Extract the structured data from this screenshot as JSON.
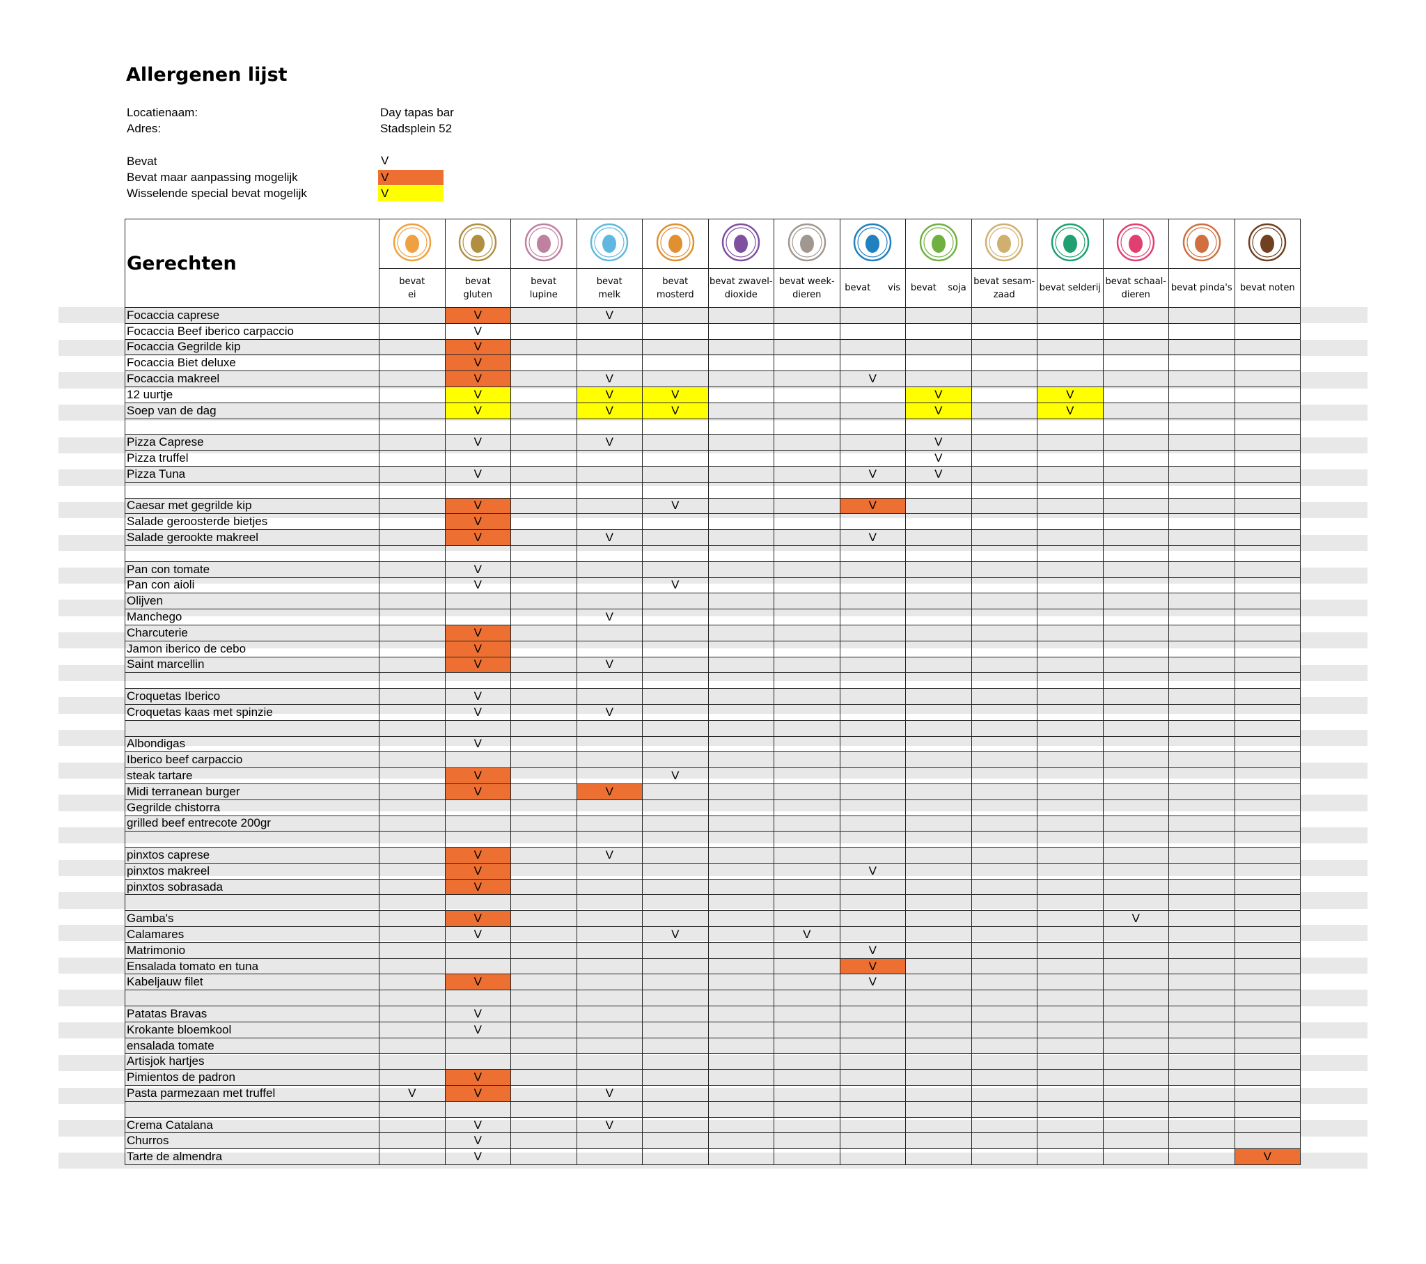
{
  "title": "Allergenen lijst",
  "info": [
    {
      "label": "Locatienaam:",
      "value": "Day tapas bar"
    },
    {
      "label": "Adres:",
      "value": "Stadsplein 52"
    }
  ],
  "legend": [
    {
      "label": "Bevat",
      "mark": "V",
      "fill": ""
    },
    {
      "label": "Bevat maar aanpassing mogelijk",
      "mark": "V",
      "fill": "#ed7032"
    },
    {
      "label": "Wisselende special bevat mogelijk",
      "mark": "V",
      "fill": "#ffff00"
    }
  ],
  "table": {
    "header": "Gerechten",
    "columns": [
      {
        "icon": "egg-icon",
        "color": "#f0a040",
        "label": [
          "bevat",
          "ei"
        ]
      },
      {
        "icon": "wheat-icon",
        "color": "#b09040",
        "label": [
          "bevat",
          "gluten"
        ]
      },
      {
        "icon": "lupine-icon",
        "color": "#c080a0",
        "label": [
          "bevat",
          "lupine"
        ]
      },
      {
        "icon": "milk-bottle-icon",
        "color": "#60b8e0",
        "label": [
          "bevat",
          "melk"
        ]
      },
      {
        "icon": "mustard-icon",
        "color": "#e09030",
        "label": [
          "bevat",
          "mosterd"
        ]
      },
      {
        "icon": "sulphite-icon",
        "color": "#8050a0",
        "label": [
          "bevat zwavel-",
          "dioxide"
        ]
      },
      {
        "icon": "snail-icon",
        "color": "#a09890",
        "label": [
          "bevat week-",
          "dieren"
        ]
      },
      {
        "icon": "fish-icon",
        "color": "#2080c0",
        "label": [
          "bevat      vis"
        ]
      },
      {
        "icon": "soy-icon",
        "color": "#70b040",
        "label": [
          "bevat    soja"
        ]
      },
      {
        "icon": "sesame-icon",
        "color": "#d0b070",
        "label": [
          "bevat sesam-",
          "zaad"
        ]
      },
      {
        "icon": "celery-icon",
        "color": "#20a070",
        "label": [
          "bevat selderij"
        ]
      },
      {
        "icon": "lobster-icon",
        "color": "#e04070",
        "label": [
          "bevat schaal-",
          "dieren"
        ]
      },
      {
        "icon": "peanut-icon",
        "color": "#d07040",
        "label": [
          "bevat pinda's"
        ]
      },
      {
        "icon": "nut-icon",
        "color": "#704020",
        "label": [
          "bevat noten"
        ]
      }
    ],
    "cell_colors": {
      "o": "#ed7032",
      "y": "#ffff00"
    },
    "rows": [
      {
        "name": "Focaccia caprese",
        "cells": [
          "",
          "Vo",
          "",
          "V",
          "",
          "",
          "",
          "",
          "",
          "",
          "",
          "",
          "",
          ""
        ]
      },
      {
        "name": "Focaccia Beef iberico carpaccio",
        "cells": [
          "",
          "V",
          "",
          "",
          "",
          "",
          "",
          "",
          "",
          "",
          "",
          "",
          "",
          ""
        ]
      },
      {
        "name": "Focaccia Gegrilde kip",
        "cells": [
          "",
          "Vo",
          "",
          "",
          "",
          "",
          "",
          "",
          "",
          "",
          "",
          "",
          "",
          ""
        ]
      },
      {
        "name": "Focaccia Biet deluxe",
        "cells": [
          "",
          "Vo",
          "",
          "",
          "",
          "",
          "",
          "",
          "",
          "",
          "",
          "",
          "",
          ""
        ]
      },
      {
        "name": "Focaccia makreel",
        "cells": [
          "",
          "Vo",
          "",
          "V",
          "",
          "",
          "",
          "V",
          "",
          "",
          "",
          "",
          "",
          ""
        ]
      },
      {
        "name": "12 uurtje",
        "cells": [
          "",
          "Vy",
          "",
          "Vy",
          "Vy",
          "",
          "",
          "",
          "Vy",
          "",
          "Vy",
          "",
          "",
          ""
        ]
      },
      {
        "name": "Soep van de dag",
        "cells": [
          "",
          "Vy",
          "",
          "Vy",
          "Vy",
          "",
          "",
          "",
          "Vy",
          "",
          "Vy",
          "",
          "",
          ""
        ]
      },
      {
        "name": "",
        "cells": [
          "",
          "",
          "",
          "",
          "",
          "",
          "",
          "",
          "",
          "",
          "",
          "",
          "",
          ""
        ]
      },
      {
        "name": "Pizza Caprese",
        "cells": [
          "",
          "V",
          "",
          "V",
          "",
          "",
          "",
          "",
          "V",
          "",
          "",
          "",
          "",
          ""
        ]
      },
      {
        "name": "Pizza truffel",
        "cells": [
          "",
          "",
          "",
          "",
          "",
          "",
          "",
          "",
          "V",
          "",
          "",
          "",
          "",
          ""
        ]
      },
      {
        "name": "Pizza Tuna",
        "cells": [
          "",
          "V",
          "",
          "",
          "",
          "",
          "",
          "V",
          "V",
          "",
          "",
          "",
          "",
          ""
        ]
      },
      {
        "name": "",
        "cells": [
          "",
          "",
          "",
          "",
          "",
          "",
          "",
          "",
          "",
          "",
          "",
          "",
          "",
          ""
        ]
      },
      {
        "name": "Caesar met gegrilde kip",
        "cells": [
          "",
          "Vo",
          "",
          "",
          "V",
          "",
          "",
          "Vo",
          "",
          "",
          "",
          "",
          "",
          ""
        ]
      },
      {
        "name": "Salade geroosterde bietjes",
        "cells": [
          "",
          "Vo",
          "",
          "",
          "",
          "",
          "",
          "",
          "",
          "",
          "",
          "",
          "",
          ""
        ]
      },
      {
        "name": "Salade gerookte makreel",
        "cells": [
          "",
          "Vo",
          "",
          "V",
          "",
          "",
          "",
          "V",
          "",
          "",
          "",
          "",
          "",
          ""
        ]
      },
      {
        "name": "",
        "cells": [
          "",
          "",
          "",
          "",
          "",
          "",
          "",
          "",
          "",
          "",
          "",
          "",
          "",
          ""
        ]
      },
      {
        "name": "Pan con tomate",
        "cells": [
          "",
          "V",
          "",
          "",
          "",
          "",
          "",
          "",
          "",
          "",
          "",
          "",
          "",
          ""
        ]
      },
      {
        "name": "Pan con aioli",
        "cells": [
          "",
          "V",
          "",
          "",
          "V",
          "",
          "",
          "",
          "",
          "",
          "",
          "",
          "",
          ""
        ]
      },
      {
        "name": "Olijven",
        "cells": [
          "",
          "",
          "",
          "",
          "",
          "",
          "",
          "",
          "",
          "",
          "",
          "",
          "",
          ""
        ]
      },
      {
        "name": "Manchego",
        "cells": [
          "",
          "",
          "",
          "V",
          "",
          "",
          "",
          "",
          "",
          "",
          "",
          "",
          "",
          ""
        ]
      },
      {
        "name": "Charcuterie",
        "cells": [
          "",
          "Vo",
          "",
          "",
          "",
          "",
          "",
          "",
          "",
          "",
          "",
          "",
          "",
          ""
        ]
      },
      {
        "name": "Jamon iberico de cebo",
        "cells": [
          "",
          "Vo",
          "",
          "",
          "",
          "",
          "",
          "",
          "",
          "",
          "",
          "",
          "",
          ""
        ]
      },
      {
        "name": "Saint marcellin",
        "cells": [
          "",
          "Vo",
          "",
          "V",
          "",
          "",
          "",
          "",
          "",
          "",
          "",
          "",
          "",
          ""
        ]
      },
      {
        "name": "",
        "cells": [
          "",
          "",
          "",
          "",
          "",
          "",
          "",
          "",
          "",
          "",
          "",
          "",
          "",
          ""
        ]
      },
      {
        "name": "Croquetas Iberico",
        "cells": [
          "",
          "V",
          "",
          "",
          "",
          "",
          "",
          "",
          "",
          "",
          "",
          "",
          "",
          ""
        ]
      },
      {
        "name": "Croquetas kaas met spinzie",
        "cells": [
          "",
          "V",
          "",
          "V",
          "",
          "",
          "",
          "",
          "",
          "",
          "",
          "",
          "",
          ""
        ]
      },
      {
        "name": "",
        "cells": [
          "",
          "",
          "",
          "",
          "",
          "",
          "",
          "",
          "",
          "",
          "",
          "",
          "",
          ""
        ]
      },
      {
        "name": "Albondigas",
        "cells": [
          "",
          "V",
          "",
          "",
          "",
          "",
          "",
          "",
          "",
          "",
          "",
          "",
          "",
          ""
        ]
      },
      {
        "name": "Iberico beef carpaccio",
        "cells": [
          "",
          "",
          "",
          "",
          "",
          "",
          "",
          "",
          "",
          "",
          "",
          "",
          "",
          ""
        ]
      },
      {
        "name": "steak tartare",
        "cells": [
          "",
          "Vo",
          "",
          "",
          "V",
          "",
          "",
          "",
          "",
          "",
          "",
          "",
          "",
          ""
        ]
      },
      {
        "name": "Midi terranean burger",
        "cells": [
          "",
          "Vo",
          "",
          "Vo",
          "",
          "",
          "",
          "",
          "",
          "",
          "",
          "",
          "",
          ""
        ]
      },
      {
        "name": "Gegrilde chistorra",
        "cells": [
          "",
          "",
          "",
          "",
          "",
          "",
          "",
          "",
          "",
          "",
          "",
          "",
          "",
          ""
        ]
      },
      {
        "name": "grilled beef entrecote 200gr",
        "cells": [
          "",
          "",
          "",
          "",
          "",
          "",
          "",
          "",
          "",
          "",
          "",
          "",
          "",
          ""
        ]
      },
      {
        "name": "",
        "cells": [
          "",
          "",
          "",
          "",
          "",
          "",
          "",
          "",
          "",
          "",
          "",
          "",
          "",
          ""
        ]
      },
      {
        "name": "pinxtos caprese",
        "cells": [
          "",
          "Vo",
          "",
          "V",
          "",
          "",
          "",
          "",
          "",
          "",
          "",
          "",
          "",
          ""
        ]
      },
      {
        "name": "pinxtos makreel",
        "cells": [
          "",
          "Vo",
          "",
          "",
          "",
          "",
          "",
          "V",
          "",
          "",
          "",
          "",
          "",
          ""
        ]
      },
      {
        "name": "pinxtos sobrasada",
        "cells": [
          "",
          "Vo",
          "",
          "",
          "",
          "",
          "",
          "",
          "",
          "",
          "",
          "",
          "",
          ""
        ]
      },
      {
        "name": "",
        "cells": [
          "",
          "",
          "",
          "",
          "",
          "",
          "",
          "",
          "",
          "",
          "",
          "",
          "",
          ""
        ]
      },
      {
        "name": "Gamba's",
        "cells": [
          "",
          "Vo",
          "",
          "",
          "",
          "",
          "",
          "",
          "",
          "",
          "",
          "V",
          "",
          ""
        ]
      },
      {
        "name": "Calamares",
        "cells": [
          "",
          "V",
          "",
          "",
          "V",
          "",
          "V",
          "",
          "",
          "",
          "",
          "",
          "",
          ""
        ]
      },
      {
        "name": "Matrimonio",
        "cells": [
          "",
          "",
          "",
          "",
          "",
          "",
          "",
          "V",
          "",
          "",
          "",
          "",
          "",
          ""
        ]
      },
      {
        "name": "Ensalada tomato en tuna",
        "cells": [
          "",
          "",
          "",
          "",
          "",
          "",
          "",
          "Vo",
          "",
          "",
          "",
          "",
          "",
          ""
        ]
      },
      {
        "name": "Kabeljauw filet",
        "cells": [
          "",
          "Vo",
          "",
          "",
          "",
          "",
          "",
          "V",
          "",
          "",
          "",
          "",
          "",
          ""
        ]
      },
      {
        "name": "",
        "cells": [
          "",
          "",
          "",
          "",
          "",
          "",
          "",
          "",
          "",
          "",
          "",
          "",
          "",
          ""
        ]
      },
      {
        "name": "Patatas Bravas",
        "cells": [
          "",
          "V",
          "",
          "",
          "",
          "",
          "",
          "",
          "",
          "",
          "",
          "",
          "",
          ""
        ]
      },
      {
        "name": "Krokante bloemkool",
        "cells": [
          "",
          "V",
          "",
          "",
          "",
          "",
          "",
          "",
          "",
          "",
          "",
          "",
          "",
          ""
        ]
      },
      {
        "name": "ensalada tomate",
        "cells": [
          "",
          "",
          "",
          "",
          "",
          "",
          "",
          "",
          "",
          "",
          "",
          "",
          "",
          ""
        ]
      },
      {
        "name": "Artisjok hartjes",
        "cells": [
          "",
          "",
          "",
          "",
          "",
          "",
          "",
          "",
          "",
          "",
          "",
          "",
          "",
          ""
        ]
      },
      {
        "name": "Pimientos de padron",
        "cells": [
          "",
          "Vo",
          "",
          "",
          "",
          "",
          "",
          "",
          "",
          "",
          "",
          "",
          "",
          ""
        ]
      },
      {
        "name": "Pasta parmezaan met truffel",
        "cells": [
          "V",
          "Vo",
          "",
          "V",
          "",
          "",
          "",
          "",
          "",
          "",
          "",
          "",
          "",
          ""
        ]
      },
      {
        "name": "",
        "cells": [
          "",
          "",
          "",
          "",
          "",
          "",
          "",
          "",
          "",
          "",
          "",
          "",
          "",
          ""
        ]
      },
      {
        "name": "Crema Catalana",
        "cells": [
          "",
          "V",
          "",
          "V",
          "",
          "",
          "",
          "",
          "",
          "",
          "",
          "",
          "",
          ""
        ]
      },
      {
        "name": "Churros",
        "cells": [
          "",
          "V",
          "",
          "",
          "",
          "",
          "",
          "",
          "",
          "",
          "",
          "",
          "",
          ""
        ]
      },
      {
        "name": "Tarte de almendra",
        "cells": [
          "",
          "V",
          "",
          "",
          "",
          "",
          "",
          "",
          "",
          "",
          "",
          "",
          "",
          "Vo"
        ]
      }
    ]
  }
}
